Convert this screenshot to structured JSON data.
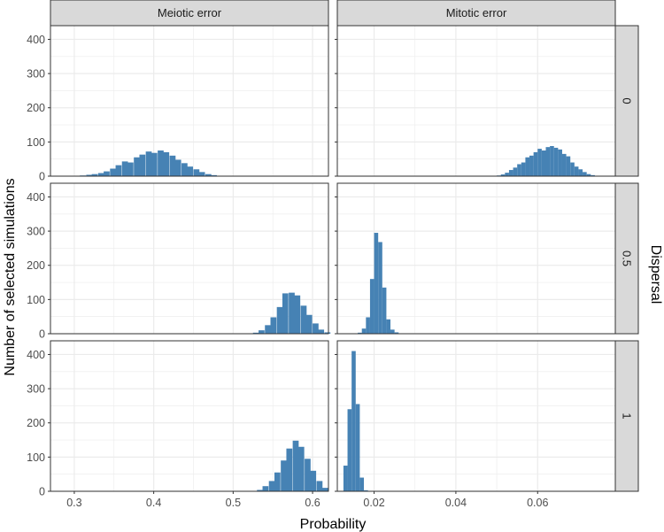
{
  "chart_data": {
    "type": "histogram-facet-grid",
    "xlabel": "Probability",
    "ylabel": "Number of selected simulations",
    "column_facets": [
      "Meiotic error",
      "Mitotic error"
    ],
    "row_facet_title": "Dispersal",
    "row_facets": [
      "0",
      "0.5",
      "1"
    ],
    "bar_color": "#4682b4",
    "panel_background": "#ffffff",
    "grid_color": "#ebebeb",
    "strip_color": "#d9d9d9",
    "grid": true,
    "ylim": [
      0,
      440
    ],
    "y_ticks": [
      0,
      100,
      200,
      300,
      400
    ],
    "columns": [
      {
        "xlim": [
          0.27,
          0.62
        ],
        "x_ticks": [
          0.3,
          0.4,
          0.5,
          0.6
        ],
        "x_tick_labels": [
          "0.3",
          "0.4",
          "0.5",
          "0.6"
        ],
        "bin_width": 0.0075
      },
      {
        "xlim": [
          0.011,
          0.079
        ],
        "x_ticks": [
          0.02,
          0.04,
          0.06
        ],
        "x_tick_labels": [
          "0.02",
          "0.04",
          "0.06"
        ],
        "bin_width": 0.001
      }
    ],
    "panels": [
      {
        "row": "0",
        "column": "Meiotic error",
        "bins": [
          [
            0.3,
            1
          ],
          [
            0.307,
            2
          ],
          [
            0.315,
            4
          ],
          [
            0.322,
            6
          ],
          [
            0.33,
            9
          ],
          [
            0.337,
            14
          ],
          [
            0.345,
            22
          ],
          [
            0.352,
            32
          ],
          [
            0.36,
            43
          ],
          [
            0.367,
            40
          ],
          [
            0.375,
            55
          ],
          [
            0.382,
            63
          ],
          [
            0.39,
            72
          ],
          [
            0.397,
            68
          ],
          [
            0.405,
            75
          ],
          [
            0.412,
            70
          ],
          [
            0.42,
            60
          ],
          [
            0.427,
            48
          ],
          [
            0.435,
            38
          ],
          [
            0.442,
            28
          ],
          [
            0.45,
            20
          ],
          [
            0.457,
            12
          ],
          [
            0.465,
            6
          ],
          [
            0.472,
            3
          ],
          [
            0.48,
            1
          ]
        ]
      },
      {
        "row": "0",
        "column": "Mitotic error",
        "bins": [
          [
            0.05,
            2
          ],
          [
            0.051,
            5
          ],
          [
            0.052,
            10
          ],
          [
            0.053,
            18
          ],
          [
            0.054,
            25
          ],
          [
            0.055,
            35
          ],
          [
            0.056,
            40
          ],
          [
            0.057,
            55
          ],
          [
            0.058,
            60
          ],
          [
            0.059,
            70
          ],
          [
            0.06,
            80
          ],
          [
            0.061,
            75
          ],
          [
            0.062,
            85
          ],
          [
            0.063,
            88
          ],
          [
            0.064,
            83
          ],
          [
            0.065,
            78
          ],
          [
            0.066,
            65
          ],
          [
            0.067,
            58
          ],
          [
            0.068,
            40
          ],
          [
            0.069,
            28
          ],
          [
            0.07,
            20
          ],
          [
            0.071,
            12
          ],
          [
            0.072,
            6
          ],
          [
            0.073,
            3
          ],
          [
            0.074,
            1
          ]
        ]
      },
      {
        "row": "0.5",
        "column": "Meiotic error",
        "bins": [
          [
            0.525,
            3
          ],
          [
            0.532,
            10
          ],
          [
            0.54,
            25
          ],
          [
            0.547,
            48
          ],
          [
            0.555,
            78
          ],
          [
            0.562,
            118
          ],
          [
            0.57,
            120
          ],
          [
            0.577,
            112
          ],
          [
            0.585,
            82
          ],
          [
            0.592,
            55
          ],
          [
            0.6,
            30
          ],
          [
            0.607,
            12
          ],
          [
            0.615,
            4
          ]
        ]
      },
      {
        "row": "0.5",
        "column": "Mitotic error",
        "bins": [
          [
            0.016,
            3
          ],
          [
            0.017,
            15
          ],
          [
            0.018,
            48
          ],
          [
            0.019,
            160
          ],
          [
            0.02,
            295
          ],
          [
            0.021,
            268
          ],
          [
            0.022,
            135
          ],
          [
            0.023,
            42
          ],
          [
            0.024,
            12
          ],
          [
            0.025,
            4
          ],
          [
            0.026,
            1
          ]
        ]
      },
      {
        "row": "1",
        "column": "Meiotic error",
        "bins": [
          [
            0.53,
            4
          ],
          [
            0.537,
            15
          ],
          [
            0.545,
            30
          ],
          [
            0.552,
            55
          ],
          [
            0.56,
            90
          ],
          [
            0.567,
            125
          ],
          [
            0.575,
            148
          ],
          [
            0.582,
            130
          ],
          [
            0.59,
            95
          ],
          [
            0.597,
            60
          ],
          [
            0.605,
            30
          ],
          [
            0.612,
            10
          ]
        ]
      },
      {
        "row": "1",
        "column": "Mitotic error",
        "bins": [
          [
            0.0125,
            75
          ],
          [
            0.0135,
            240
          ],
          [
            0.0145,
            410
          ],
          [
            0.0155,
            255
          ],
          [
            0.0165,
            40
          ],
          [
            0.0175,
            3
          ]
        ]
      }
    ]
  }
}
